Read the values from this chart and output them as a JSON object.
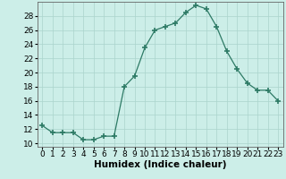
{
  "x": [
    0,
    1,
    2,
    3,
    4,
    5,
    6,
    7,
    8,
    9,
    10,
    11,
    12,
    13,
    14,
    15,
    16,
    17,
    18,
    19,
    20,
    21,
    22,
    23
  ],
  "y": [
    12.5,
    11.5,
    11.5,
    11.5,
    10.5,
    10.5,
    11.0,
    11.0,
    18.0,
    19.5,
    23.5,
    26.0,
    26.5,
    27.0,
    28.5,
    29.5,
    29.0,
    26.5,
    23.0,
    20.5,
    18.5,
    17.5,
    17.5,
    16.0
  ],
  "xlabel": "Humidex (Indice chaleur)",
  "ylim": [
    9.5,
    30.0
  ],
  "yticks": [
    10,
    12,
    14,
    16,
    18,
    20,
    22,
    24,
    26,
    28
  ],
  "line_color": "#2d7a65",
  "marker_color": "#2d7a65",
  "bg_color": "#cceee8",
  "grid_color": "#aad4cc",
  "label_fontsize": 7.5,
  "tick_fontsize": 6.5
}
